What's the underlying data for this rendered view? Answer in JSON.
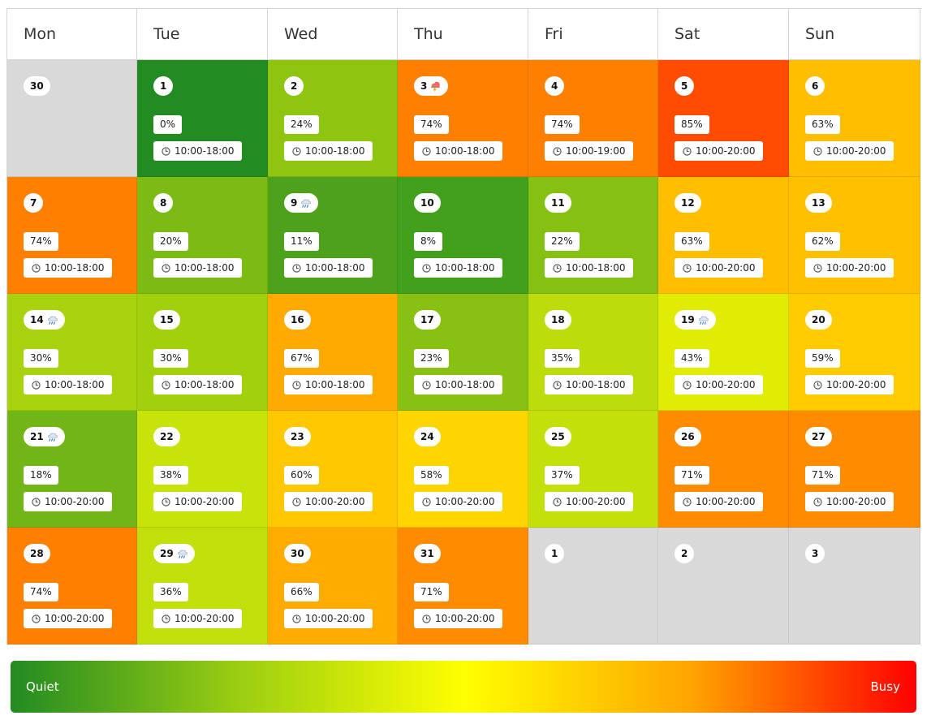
{
  "calendar": {
    "weekdays": [
      "Mon",
      "Tue",
      "Wed",
      "Thu",
      "Fri",
      "Sat",
      "Sun"
    ],
    "weeks": [
      [
        {
          "day": "30",
          "outside": true
        },
        {
          "day": "1",
          "busy": "0%",
          "hours": "10:00-18:00",
          "color": "#228b22"
        },
        {
          "day": "2",
          "busy": "24%",
          "hours": "10:00-18:00",
          "color": "#8ec511"
        },
        {
          "day": "3",
          "busy": "74%",
          "hours": "10:00-18:00",
          "color": "#ff8000",
          "weather": "thunderstorm-icon"
        },
        {
          "day": "4",
          "busy": "74%",
          "hours": "10:00-19:00",
          "color": "#ff8000"
        },
        {
          "day": "5",
          "busy": "85%",
          "hours": "10:00-20:00",
          "color": "#ff4c00"
        },
        {
          "day": "6",
          "busy": "63%",
          "hours": "10:00-20:00",
          "color": "#ffbf00"
        }
      ],
      [
        {
          "day": "7",
          "busy": "74%",
          "hours": "10:00-18:00",
          "color": "#ff8000"
        },
        {
          "day": "8",
          "busy": "20%",
          "hours": "10:00-18:00",
          "color": "#7bbb13"
        },
        {
          "day": "9",
          "busy": "11%",
          "hours": "10:00-18:00",
          "color": "#4ea21b",
          "weather": "rain-cloud-icon"
        },
        {
          "day": "10",
          "busy": "8%",
          "hours": "10:00-18:00",
          "color": "#43a01d"
        },
        {
          "day": "11",
          "busy": "22%",
          "hours": "10:00-18:00",
          "color": "#85c012"
        },
        {
          "day": "12",
          "busy": "63%",
          "hours": "10:00-20:00",
          "color": "#ffbf00"
        },
        {
          "day": "13",
          "busy": "62%",
          "hours": "10:00-20:00",
          "color": "#ffc000"
        }
      ],
      [
        {
          "day": "14",
          "busy": "30%",
          "hours": "10:00-18:00",
          "color": "#a8d20e",
          "weather": "rain-cloud-icon"
        },
        {
          "day": "15",
          "busy": "30%",
          "hours": "10:00-18:00",
          "color": "#a3d00d"
        },
        {
          "day": "16",
          "busy": "67%",
          "hours": "10:00-18:00",
          "color": "#ffaa00"
        },
        {
          "day": "17",
          "busy": "23%",
          "hours": "10:00-18:00",
          "color": "#88c112"
        },
        {
          "day": "18",
          "busy": "35%",
          "hours": "10:00-18:00",
          "color": "#bcdc0c"
        },
        {
          "day": "19",
          "busy": "43%",
          "hours": "10:00-20:00",
          "color": "#e0ec03",
          "weather": "rain-cloud-icon"
        },
        {
          "day": "20",
          "busy": "59%",
          "hours": "10:00-20:00",
          "color": "#ffcc00"
        }
      ],
      [
        {
          "day": "21",
          "busy": "18%",
          "hours": "10:00-20:00",
          "color": "#72b516",
          "weather": "rain-cloud-icon"
        },
        {
          "day": "22",
          "busy": "38%",
          "hours": "10:00-20:00",
          "color": "#c8e30a"
        },
        {
          "day": "23",
          "busy": "60%",
          "hours": "10:00-20:00",
          "color": "#ffc800"
        },
        {
          "day": "24",
          "busy": "58%",
          "hours": "10:00-20:00",
          "color": "#ffd500"
        },
        {
          "day": "25",
          "busy": "37%",
          "hours": "10:00-20:00",
          "color": "#c4e00a"
        },
        {
          "day": "26",
          "busy": "71%",
          "hours": "10:00-20:00",
          "color": "#ff8c00"
        },
        {
          "day": "27",
          "busy": "71%",
          "hours": "10:00-20:00",
          "color": "#ff8c00"
        }
      ],
      [
        {
          "day": "28",
          "busy": "74%",
          "hours": "10:00-20:00",
          "color": "#ff8000"
        },
        {
          "day": "29",
          "busy": "36%",
          "hours": "10:00-20:00",
          "color": "#c1df0b",
          "weather": "rain-cloud-icon"
        },
        {
          "day": "30",
          "busy": "66%",
          "hours": "10:00-20:00",
          "color": "#ffab00"
        },
        {
          "day": "31",
          "busy": "71%",
          "hours": "10:00-20:00",
          "color": "#ff8c00"
        },
        {
          "day": "1",
          "outside": true
        },
        {
          "day": "2",
          "outside": true
        },
        {
          "day": "3",
          "outside": true
        }
      ]
    ]
  },
  "legend": {
    "quiet_label": "Quiet",
    "busy_label": "Busy"
  }
}
